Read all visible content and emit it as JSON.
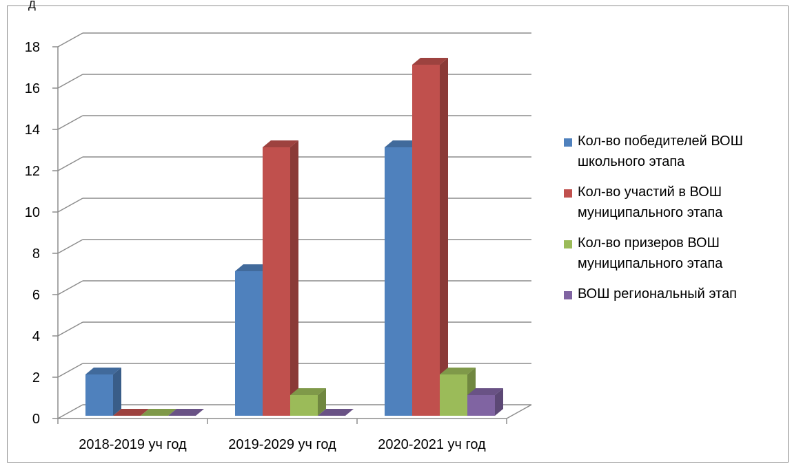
{
  "top_mark": "Д",
  "chart_data": {
    "type": "bar",
    "categories": [
      "2018-2019 уч год",
      "2019-2029 уч год",
      "2020-2021 уч год"
    ],
    "series": [
      {
        "name": "Кол-во победителей ВОШ\nшкольного этапа",
        "color": "#4f81bd",
        "values": [
          2,
          7,
          13
        ]
      },
      {
        "name": "Кол-во участий в ВОШ\nмуниципального этапа",
        "color": "#c0504d",
        "values": [
          0,
          13,
          17
        ]
      },
      {
        "name": "Кол-во призеров ВОШ\nмуниципального этапа",
        "color": "#9bbb59",
        "values": [
          0,
          1,
          2
        ]
      },
      {
        "name": "ВОШ региональный этап",
        "color": "#8064a2",
        "values": [
          0,
          0,
          1
        ]
      }
    ],
    "yticks": [
      "0",
      "2",
      "4",
      "6",
      "8",
      "10",
      "12",
      "14",
      "16",
      "18"
    ],
    "ylim": [
      0,
      18
    ],
    "grid": true,
    "legend_position": "right",
    "style": "3d-clustered-column"
  }
}
